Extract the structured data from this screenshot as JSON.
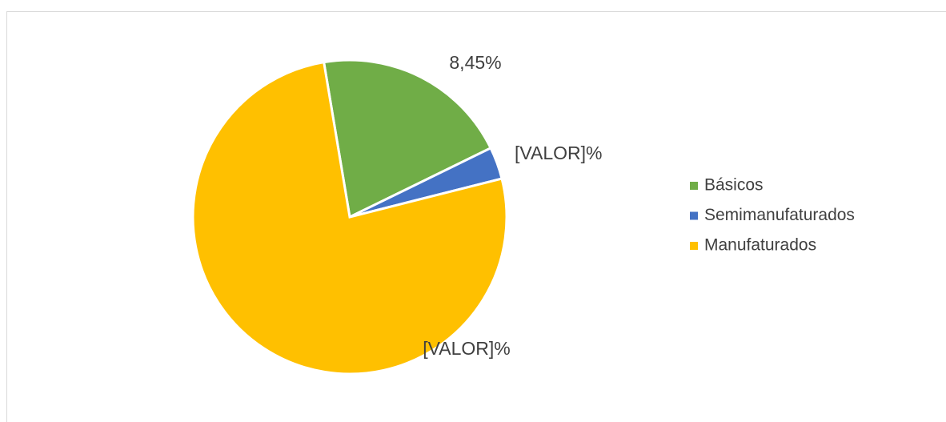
{
  "chart_data": {
    "type": "pie",
    "categories": [
      "Básicos",
      "Semimanufaturados",
      "Manufaturados"
    ],
    "values": [
      8.45,
      1.37,
      31.6
    ],
    "value_labels": [
      "8,45%",
      "[VALOR]%",
      "[VALOR]%"
    ],
    "colors": [
      "#70ad47",
      "#4472c4",
      "#ffc000"
    ],
    "start_angle": -9.5,
    "legend": "right"
  }
}
